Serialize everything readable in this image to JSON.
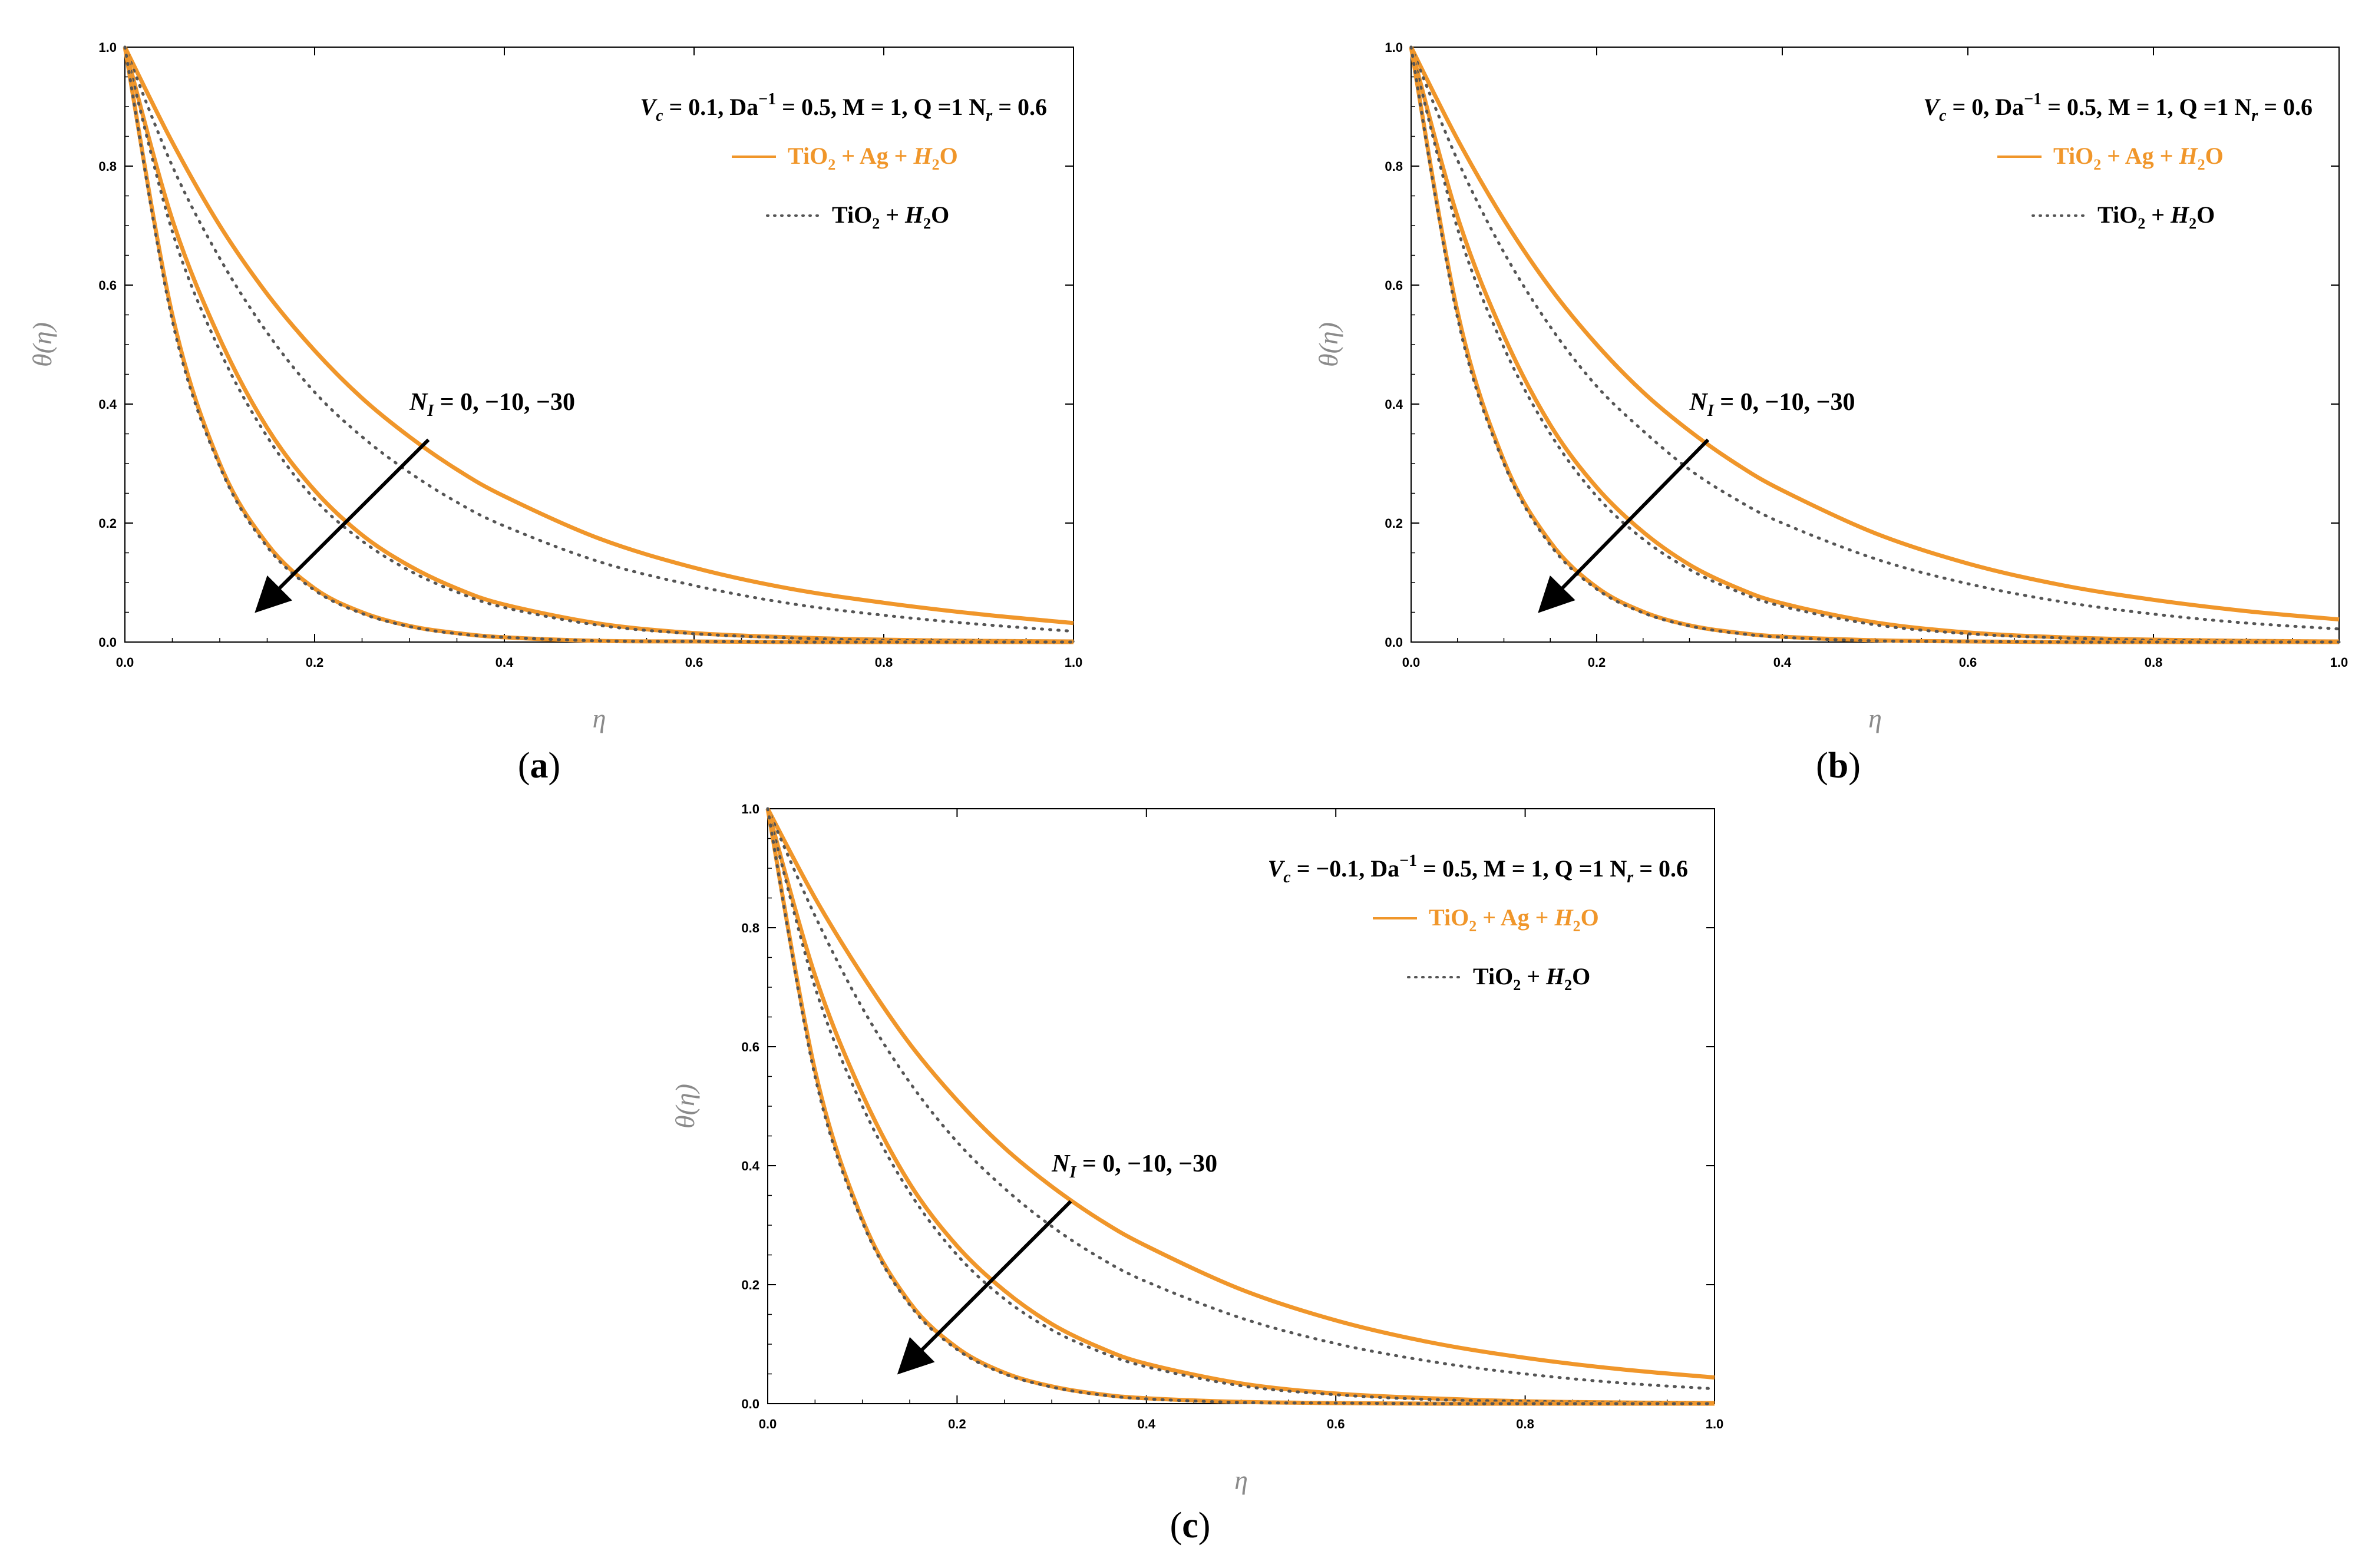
{
  "colors": {
    "hybrid_line": "#f0962a",
    "mono_line": "#555555",
    "arrow": "#000000",
    "axis_label": "#8a8a8a"
  },
  "panels": [
    {
      "caption_letter": "a",
      "params_text": "V_c = 0.1, Da^-1 = 0.5, M = 1, Q =1 N_r = 0.6",
      "param_parts": {
        "vc": "0.1",
        "da": "0.5",
        "m": "1",
        "q": "1",
        "nr": "0.6"
      }
    },
    {
      "caption_letter": "b",
      "params_text": "V_c = 0, Da^-1 = 0.5, M = 1, Q =1 N_r = 0.6",
      "param_parts": {
        "vc": "0",
        "da": "0.5",
        "m": "1",
        "q": "1",
        "nr": "0.6"
      }
    },
    {
      "caption_letter": "c",
      "params_text": "V_c = −0.1, Da^-1 = 0.5, M = 1, Q =1 N_r = 0.6",
      "param_parts": {
        "vc": "−0.1",
        "da": "0.5",
        "m": "1",
        "q": "1",
        "nr": "0.6"
      }
    }
  ],
  "legend": {
    "hybrid": "TiO2 + Ag + H2O",
    "mono": "TiO2 + H2O"
  },
  "annotation": {
    "symbol": "N_I",
    "values_text": "0, −10, −30"
  },
  "chart_data": [
    {
      "type": "line",
      "xlabel": "η",
      "ylabel": "θ(η)",
      "xlim": [
        0,
        1.0
      ],
      "ylim": [
        0,
        1.0
      ],
      "xticks": [
        "0.0",
        "0.2",
        "0.4",
        "0.6",
        "0.8",
        "1.0"
      ],
      "yticks": [
        "0.0",
        "0.2",
        "0.4",
        "0.6",
        "0.8",
        "1.0"
      ],
      "grid": false,
      "legend_position": "top-right",
      "series": [
        {
          "name": "TiO2 + Ag + H2O",
          "style": "solid",
          "N_I": 0,
          "x": [
            0,
            0.05,
            0.1,
            0.15,
            0.2,
            0.25,
            0.3,
            0.35,
            0.4,
            0.5,
            0.6,
            0.7,
            0.8,
            0.9,
            1.0
          ],
          "y": [
            1.0,
            0.84,
            0.7,
            0.585,
            0.49,
            0.41,
            0.345,
            0.29,
            0.245,
            0.174,
            0.125,
            0.09,
            0.066,
            0.047,
            0.032
          ]
        },
        {
          "name": "TiO2 + H2O",
          "style": "dotted",
          "N_I": 0,
          "x": [
            0,
            0.05,
            0.1,
            0.15,
            0.2,
            0.25,
            0.3,
            0.35,
            0.4,
            0.5,
            0.6,
            0.7,
            0.8,
            0.9,
            1.0
          ],
          "y": [
            1.0,
            0.8,
            0.645,
            0.52,
            0.42,
            0.345,
            0.285,
            0.235,
            0.195,
            0.135,
            0.095,
            0.065,
            0.045,
            0.03,
            0.018
          ]
        },
        {
          "name": "TiO2 + Ag + H2O",
          "style": "solid",
          "N_I": -10,
          "x": [
            0,
            0.05,
            0.1,
            0.15,
            0.2,
            0.25,
            0.3,
            0.35,
            0.4,
            0.5,
            0.6,
            0.7,
            0.8,
            0.9,
            1.0
          ],
          "y": [
            1.0,
            0.71,
            0.51,
            0.36,
            0.255,
            0.18,
            0.128,
            0.09,
            0.063,
            0.031,
            0.015,
            0.008,
            0.004,
            0.002,
            0.001
          ]
        },
        {
          "name": "TiO2 + H2O",
          "style": "dotted",
          "N_I": -10,
          "x": [
            0,
            0.05,
            0.1,
            0.15,
            0.2,
            0.25,
            0.3,
            0.35,
            0.4,
            0.5,
            0.6,
            0.7,
            0.8,
            0.9,
            1.0
          ],
          "y": [
            1.0,
            0.69,
            0.49,
            0.345,
            0.24,
            0.17,
            0.12,
            0.084,
            0.058,
            0.028,
            0.014,
            0.007,
            0.003,
            0.002,
            0.001
          ]
        },
        {
          "name": "TiO2 + Ag + H2O",
          "style": "solid",
          "N_I": -30,
          "x": [
            0,
            0.05,
            0.1,
            0.15,
            0.2,
            0.25,
            0.3,
            0.35,
            0.4,
            0.5,
            0.6,
            0.7,
            0.8,
            0.9,
            1.0
          ],
          "y": [
            1.0,
            0.55,
            0.3,
            0.165,
            0.09,
            0.05,
            0.027,
            0.015,
            0.008,
            0.002,
            0.001,
            0.0,
            0.0,
            0.0,
            0.0
          ]
        },
        {
          "name": "TiO2 + H2O",
          "style": "dotted",
          "N_I": -30,
          "x": [
            0,
            0.05,
            0.1,
            0.15,
            0.2,
            0.25,
            0.3,
            0.35,
            0.4,
            0.5,
            0.6,
            0.7,
            0.8,
            0.9,
            1.0
          ],
          "y": [
            1.0,
            0.54,
            0.295,
            0.16,
            0.087,
            0.048,
            0.026,
            0.014,
            0.008,
            0.002,
            0.001,
            0.0,
            0.0,
            0.0,
            0.0
          ]
        }
      ]
    },
    {
      "type": "line",
      "xlabel": "η",
      "ylabel": "θ(η)",
      "xlim": [
        0,
        1.0
      ],
      "ylim": [
        0,
        1.0
      ],
      "xticks": [
        "0.0",
        "0.2",
        "0.4",
        "0.6",
        "0.8",
        "1.0"
      ],
      "yticks": [
        "0.0",
        "0.2",
        "0.4",
        "0.6",
        "0.8",
        "1.0"
      ],
      "grid": false,
      "legend_position": "top-right",
      "series": [
        {
          "name": "TiO2 + Ag + H2O",
          "style": "solid",
          "N_I": 0,
          "x": [
            0,
            0.05,
            0.1,
            0.15,
            0.2,
            0.25,
            0.3,
            0.35,
            0.4,
            0.5,
            0.6,
            0.7,
            0.8,
            0.9,
            1.0
          ],
          "y": [
            1.0,
            0.845,
            0.71,
            0.595,
            0.5,
            0.42,
            0.355,
            0.3,
            0.255,
            0.183,
            0.132,
            0.096,
            0.071,
            0.052,
            0.038
          ]
        },
        {
          "name": "TiO2 + H2O",
          "style": "dotted",
          "N_I": 0,
          "x": [
            0,
            0.05,
            0.1,
            0.15,
            0.2,
            0.25,
            0.3,
            0.35,
            0.4,
            0.5,
            0.6,
            0.7,
            0.8,
            0.9,
            1.0
          ],
          "y": [
            1.0,
            0.81,
            0.655,
            0.53,
            0.43,
            0.355,
            0.29,
            0.24,
            0.2,
            0.14,
            0.098,
            0.068,
            0.047,
            0.032,
            0.022
          ]
        },
        {
          "name": "TiO2 + Ag + H2O",
          "style": "solid",
          "N_I": -10,
          "x": [
            0,
            0.05,
            0.1,
            0.15,
            0.2,
            0.25,
            0.3,
            0.35,
            0.4,
            0.5,
            0.6,
            0.7,
            0.8,
            0.9,
            1.0
          ],
          "y": [
            1.0,
            0.715,
            0.515,
            0.365,
            0.26,
            0.185,
            0.13,
            0.092,
            0.065,
            0.033,
            0.016,
            0.008,
            0.004,
            0.002,
            0.001
          ]
        },
        {
          "name": "TiO2 + H2O",
          "style": "dotted",
          "N_I": -10,
          "x": [
            0,
            0.05,
            0.1,
            0.15,
            0.2,
            0.25,
            0.3,
            0.35,
            0.4,
            0.5,
            0.6,
            0.7,
            0.8,
            0.9,
            1.0
          ],
          "y": [
            1.0,
            0.695,
            0.495,
            0.35,
            0.245,
            0.173,
            0.122,
            0.086,
            0.06,
            0.029,
            0.014,
            0.007,
            0.003,
            0.002,
            0.001
          ]
        },
        {
          "name": "TiO2 + Ag + H2O",
          "style": "solid",
          "N_I": -30,
          "x": [
            0,
            0.05,
            0.1,
            0.15,
            0.2,
            0.25,
            0.3,
            0.35,
            0.4,
            0.5,
            0.6,
            0.7,
            0.8,
            0.9,
            1.0
          ],
          "y": [
            1.0,
            0.555,
            0.305,
            0.168,
            0.092,
            0.051,
            0.028,
            0.016,
            0.009,
            0.003,
            0.001,
            0.0,
            0.0,
            0.0,
            0.0
          ]
        },
        {
          "name": "TiO2 + H2O",
          "style": "dotted",
          "N_I": -30,
          "x": [
            0,
            0.05,
            0.1,
            0.15,
            0.2,
            0.25,
            0.3,
            0.35,
            0.4,
            0.5,
            0.6,
            0.7,
            0.8,
            0.9,
            1.0
          ],
          "y": [
            1.0,
            0.545,
            0.3,
            0.163,
            0.089,
            0.049,
            0.027,
            0.015,
            0.008,
            0.002,
            0.001,
            0.0,
            0.0,
            0.0,
            0.0
          ]
        }
      ]
    },
    {
      "type": "line",
      "xlabel": "η",
      "ylabel": "θ(η)",
      "xlim": [
        0,
        1.0
      ],
      "ylim": [
        0,
        1.0
      ],
      "xticks": [
        "0.0",
        "0.2",
        "0.4",
        "0.6",
        "0.8",
        "1.0"
      ],
      "yticks": [
        "0.0",
        "0.2",
        "0.4",
        "0.6",
        "0.8",
        "1.0"
      ],
      "grid": false,
      "legend_position": "top-right",
      "series": [
        {
          "name": "TiO2 + Ag + H2O",
          "style": "solid",
          "N_I": 0,
          "x": [
            0,
            0.05,
            0.1,
            0.15,
            0.2,
            0.25,
            0.3,
            0.35,
            0.4,
            0.5,
            0.6,
            0.7,
            0.8,
            0.9,
            1.0
          ],
          "y": [
            1.0,
            0.85,
            0.72,
            0.605,
            0.51,
            0.43,
            0.365,
            0.31,
            0.265,
            0.192,
            0.14,
            0.103,
            0.077,
            0.058,
            0.044
          ]
        },
        {
          "name": "TiO2 + H2O",
          "style": "dotted",
          "N_I": 0,
          "x": [
            0,
            0.05,
            0.1,
            0.15,
            0.2,
            0.25,
            0.3,
            0.35,
            0.4,
            0.5,
            0.6,
            0.7,
            0.8,
            0.9,
            1.0
          ],
          "y": [
            1.0,
            0.82,
            0.665,
            0.54,
            0.44,
            0.362,
            0.298,
            0.246,
            0.205,
            0.144,
            0.101,
            0.071,
            0.05,
            0.035,
            0.025
          ]
        },
        {
          "name": "TiO2 + Ag + H2O",
          "style": "solid",
          "N_I": -10,
          "x": [
            0,
            0.05,
            0.1,
            0.15,
            0.2,
            0.25,
            0.3,
            0.35,
            0.4,
            0.5,
            0.6,
            0.7,
            0.8,
            0.9,
            1.0
          ],
          "y": [
            1.0,
            0.72,
            0.52,
            0.37,
            0.265,
            0.19,
            0.134,
            0.095,
            0.067,
            0.034,
            0.017,
            0.009,
            0.004,
            0.002,
            0.001
          ]
        },
        {
          "name": "TiO2 + H2O",
          "style": "dotted",
          "N_I": -10,
          "x": [
            0,
            0.05,
            0.1,
            0.15,
            0.2,
            0.25,
            0.3,
            0.35,
            0.4,
            0.5,
            0.6,
            0.7,
            0.8,
            0.9,
            1.0
          ],
          "y": [
            1.0,
            0.7,
            0.5,
            0.355,
            0.25,
            0.176,
            0.124,
            0.088,
            0.062,
            0.03,
            0.015,
            0.007,
            0.004,
            0.002,
            0.001
          ]
        },
        {
          "name": "TiO2 + Ag + H2O",
          "style": "solid",
          "N_I": -30,
          "x": [
            0,
            0.05,
            0.1,
            0.15,
            0.2,
            0.25,
            0.3,
            0.35,
            0.4,
            0.5,
            0.6,
            0.7,
            0.8,
            0.9,
            1.0
          ],
          "y": [
            1.0,
            0.56,
            0.31,
            0.17,
            0.094,
            0.052,
            0.029,
            0.016,
            0.009,
            0.003,
            0.001,
            0.0,
            0.0,
            0.0,
            0.0
          ]
        },
        {
          "name": "TiO2 + H2O",
          "style": "dotted",
          "N_I": -30,
          "x": [
            0,
            0.05,
            0.1,
            0.15,
            0.2,
            0.25,
            0.3,
            0.35,
            0.4,
            0.5,
            0.6,
            0.7,
            0.8,
            0.9,
            1.0
          ],
          "y": [
            1.0,
            0.55,
            0.305,
            0.166,
            0.091,
            0.05,
            0.028,
            0.015,
            0.008,
            0.002,
            0.001,
            0.0,
            0.0,
            0.0,
            0.0
          ]
        }
      ]
    }
  ]
}
